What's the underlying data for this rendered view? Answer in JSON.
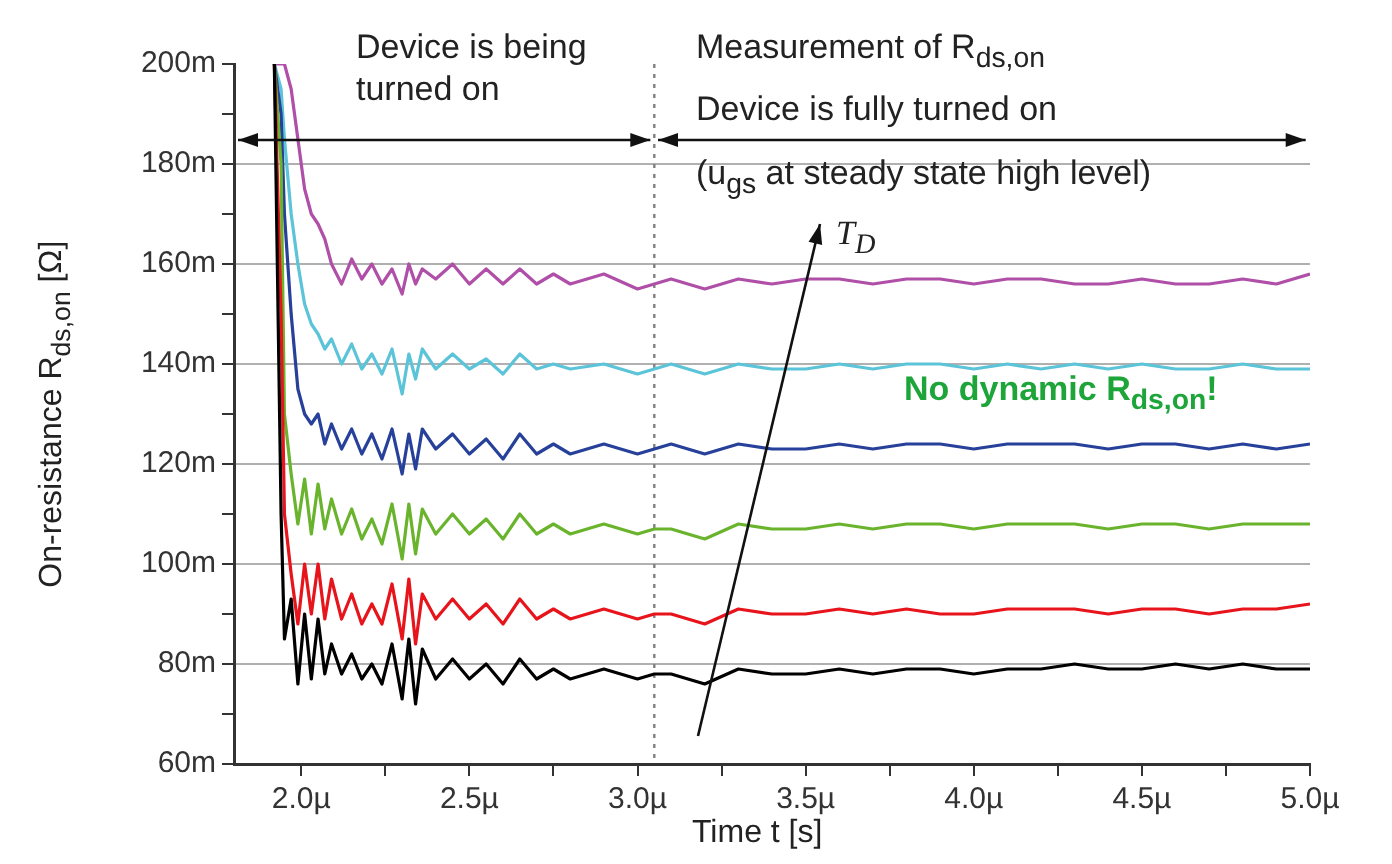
{
  "chart_data": {
    "type": "line",
    "xlabel": "Time t [s]",
    "ylabel": "On-resistance R$_{ds,on}$ [Ω]",
    "xlim": [
      1.8,
      5.0
    ],
    "ylim": [
      60,
      200
    ],
    "xticks": [
      {
        "value": 2.0,
        "label": "2.0µ"
      },
      {
        "value": 2.25,
        "label": null
      },
      {
        "value": 2.5,
        "label": "2.5µ"
      },
      {
        "value": 2.75,
        "label": null
      },
      {
        "value": 3.0,
        "label": "3.0µ"
      },
      {
        "value": 3.25,
        "label": null
      },
      {
        "value": 3.5,
        "label": "3.5µ"
      },
      {
        "value": 3.75,
        "label": null
      },
      {
        "value": 4.0,
        "label": "4.0µ"
      },
      {
        "value": 4.25,
        "label": null
      },
      {
        "value": 4.5,
        "label": "4.5µ"
      },
      {
        "value": 4.75,
        "label": null
      },
      {
        "value": 5.0,
        "label": "5.0µ"
      }
    ],
    "yticks": [
      {
        "value": 60,
        "label": "60m"
      },
      {
        "value": 70,
        "label": null
      },
      {
        "value": 80,
        "label": "80m"
      },
      {
        "value": 90,
        "label": null
      },
      {
        "value": 100,
        "label": "100m"
      },
      {
        "value": 110,
        "label": null
      },
      {
        "value": 120,
        "label": "120m"
      },
      {
        "value": 130,
        "label": null
      },
      {
        "value": 140,
        "label": "140m"
      },
      {
        "value": 150,
        "label": null
      },
      {
        "value": 160,
        "label": "160m"
      },
      {
        "value": 170,
        "label": null
      },
      {
        "value": 180,
        "label": "180m"
      },
      {
        "value": 190,
        "label": null
      },
      {
        "value": 200,
        "label": "200m"
      }
    ],
    "grid": "y",
    "legend": false,
    "marker": "none",
    "line_style": "solid",
    "x": [
      1.92,
      1.94,
      1.95,
      1.97,
      1.99,
      2.01,
      2.03,
      2.05,
      2.07,
      2.09,
      2.12,
      2.15,
      2.18,
      2.21,
      2.24,
      2.27,
      2.3,
      2.32,
      2.34,
      2.36,
      2.4,
      2.45,
      2.5,
      2.55,
      2.6,
      2.65,
      2.7,
      2.75,
      2.8,
      2.9,
      3.0,
      3.05,
      3.1,
      3.2,
      3.3,
      3.4,
      3.5,
      3.6,
      3.7,
      3.8,
      3.9,
      4.0,
      4.1,
      4.2,
      4.3,
      4.4,
      4.5,
      4.6,
      4.7,
      4.8,
      4.9,
      5.0
    ],
    "series": [
      {
        "color": "#000000",
        "values": [
          200,
          110,
          85,
          93,
          76,
          90,
          77,
          89,
          78,
          84,
          78,
          82,
          77,
          80,
          76,
          84,
          73,
          85,
          72,
          83,
          77,
          81,
          77,
          80,
          76,
          81,
          77,
          79,
          77,
          79,
          77,
          78,
          78,
          76,
          79,
          78,
          78,
          79,
          78,
          79,
          79,
          78,
          79,
          79,
          80,
          79,
          79,
          80,
          79,
          80,
          79,
          79
        ]
      },
      {
        "color": "#e8141c",
        "values": [
          200,
          150,
          110,
          98,
          88,
          100,
          90,
          100,
          89,
          97,
          89,
          94,
          88,
          92,
          88,
          96,
          85,
          97,
          84,
          94,
          89,
          93,
          89,
          92,
          88,
          93,
          89,
          91,
          89,
          91,
          89,
          90,
          90,
          88,
          91,
          90,
          90,
          91,
          90,
          91,
          90,
          90,
          91,
          91,
          91,
          90,
          91,
          91,
          90,
          91,
          91,
          92
        ]
      },
      {
        "color": "#6ab42d",
        "values": [
          200,
          180,
          130,
          118,
          108,
          117,
          106,
          116,
          107,
          113,
          106,
          111,
          105,
          109,
          104,
          112,
          101,
          112,
          102,
          111,
          106,
          110,
          106,
          109,
          105,
          110,
          106,
          108,
          106,
          108,
          106,
          107,
          107,
          105,
          108,
          107,
          107,
          108,
          107,
          108,
          108,
          107,
          108,
          108,
          108,
          107,
          108,
          108,
          107,
          108,
          108,
          108
        ]
      },
      {
        "color": "#27419a",
        "values": [
          200,
          190,
          170,
          150,
          135,
          130,
          128,
          130,
          124,
          128,
          123,
          127,
          122,
          126,
          121,
          127,
          118,
          126,
          119,
          127,
          123,
          126,
          122,
          125,
          121,
          126,
          122,
          124,
          122,
          124,
          122,
          123,
          124,
          122,
          124,
          123,
          123,
          124,
          123,
          124,
          124,
          123,
          124,
          124,
          124,
          123,
          124,
          124,
          123,
          124,
          123,
          124
        ]
      },
      {
        "color": "#5bc4d8",
        "values": [
          200,
          195,
          185,
          170,
          160,
          152,
          148,
          146,
          143,
          145,
          140,
          144,
          139,
          142,
          138,
          143,
          134,
          142,
          137,
          143,
          139,
          142,
          139,
          141,
          138,
          142,
          139,
          140,
          139,
          140,
          138,
          139,
          140,
          138,
          140,
          139,
          139,
          140,
          139,
          140,
          140,
          139,
          140,
          139,
          140,
          139,
          140,
          139,
          139,
          140,
          139,
          139
        ]
      },
      {
        "color": "#b04fa8",
        "values": [
          200,
          200,
          200,
          195,
          185,
          175,
          170,
          168,
          165,
          160,
          156,
          161,
          157,
          160,
          156,
          159,
          154,
          160,
          156,
          159,
          157,
          160,
          156,
          159,
          156,
          159,
          156,
          158,
          156,
          158,
          155,
          156,
          157,
          155,
          157,
          156,
          157,
          157,
          156,
          157,
          157,
          156,
          157,
          157,
          156,
          156,
          157,
          156,
          156,
          157,
          156,
          158
        ]
      }
    ],
    "ref_lines": [
      {
        "axis": "x",
        "value": 3.05,
        "color": "#808080",
        "line_style": "dotted"
      }
    ],
    "annotations": [
      "Device is being turned on",
      "Measurement of R$_{ds,on}$",
      "Device is fully turned on",
      "(u$_{gs}$ at steady state high level)",
      "T$_{D}$",
      "No dynamic R$_{ds,on}$!"
    ]
  }
}
